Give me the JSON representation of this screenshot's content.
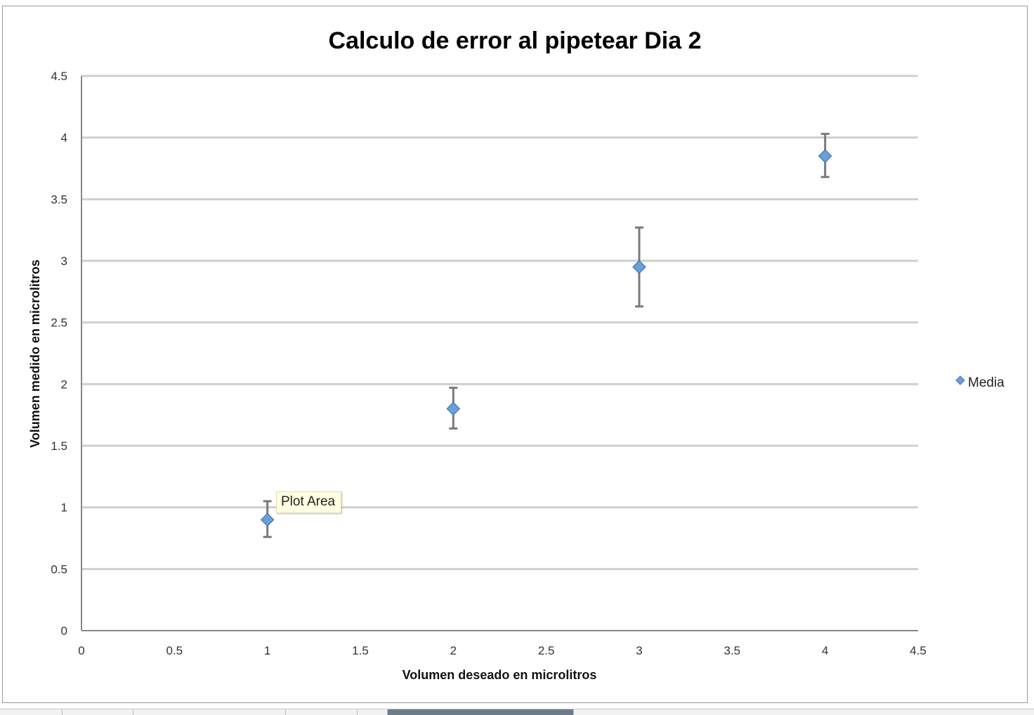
{
  "chart_data": {
    "type": "scatter",
    "title": "Calculo de error al pipetear Dia 2",
    "xlabel": "Volumen deseado en microlitros",
    "ylabel": "Volumen medido en microlitros",
    "xlim": [
      0,
      4.5
    ],
    "ylim": [
      0,
      4.5
    ],
    "x_ticks": [
      "0",
      "0.5",
      "1",
      "1.5",
      "2",
      "2.5",
      "3",
      "3.5",
      "4",
      "4.5"
    ],
    "y_ticks": [
      "0",
      "0.5",
      "1",
      "1.5",
      "2",
      "2.5",
      "3",
      "3.5",
      "4",
      "4.5"
    ],
    "grid": "horizontal",
    "legend_position": "right",
    "series": [
      {
        "name": "Media",
        "color": "#6b9fd8",
        "marker": "diamond",
        "x": [
          1,
          2,
          3,
          4
        ],
        "y": [
          0.9,
          1.8,
          2.95,
          3.85
        ],
        "error_low": [
          0.76,
          1.64,
          2.63,
          3.68
        ],
        "error_high": [
          1.05,
          1.97,
          3.27,
          4.03
        ]
      }
    ]
  },
  "tooltip": {
    "text": "Plot Area"
  },
  "colors": {
    "grid": "#cfcfcf",
    "axis": "#888888",
    "errorbar": "#7a7a7a",
    "tab_active": "#6d7b8a"
  }
}
